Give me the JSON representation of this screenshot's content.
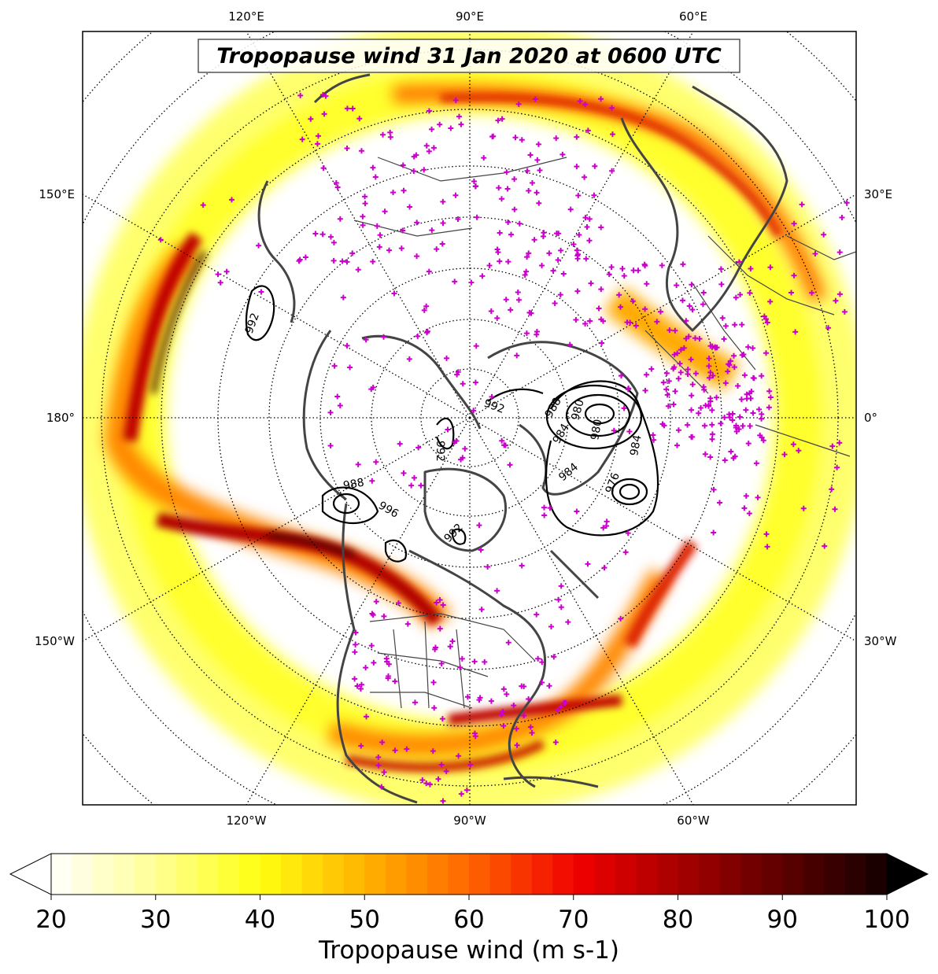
{
  "map": {
    "title": "Tropopause wind 31 Jan 2020 at 0600 UTC",
    "projection": "north polar stereographic",
    "longitude_labels": {
      "top": [
        "120°E",
        "90°E",
        "60°E"
      ],
      "left": [
        "150°E",
        "180°",
        "150°W"
      ],
      "right": [
        "30°E",
        "0°",
        "30°W"
      ],
      "bottom": [
        "120°W",
        "90°W",
        "60°W"
      ]
    },
    "gridlines": "dotted",
    "station_marker": "+",
    "station_marker_color": "#cc00cc",
    "coastline_color": "#444444",
    "contour_color": "#000000",
    "contour_labels": [
      "992",
      "992",
      "988",
      "980",
      "984",
      "976",
      "980",
      "992",
      "988",
      "984",
      "996",
      "984",
      "992"
    ]
  },
  "colorbar": {
    "label": "Tropopause wind (m s-1)",
    "min": 20,
    "max": 100,
    "step": 2,
    "extend": "both",
    "ticks": [
      "20",
      "30",
      "40",
      "50",
      "60",
      "70",
      "80",
      "90",
      "100"
    ],
    "colormap": "hot_r",
    "under_color": "#ffffff",
    "over_color": "#000000"
  }
}
